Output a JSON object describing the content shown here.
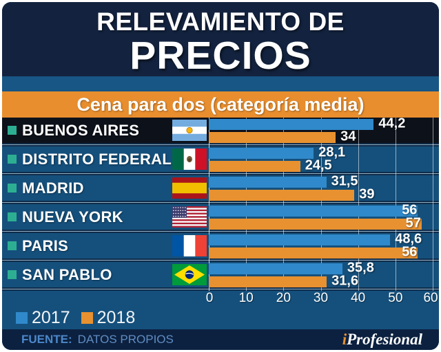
{
  "header": {
    "title_line1": "RELEVAMIENTO DE",
    "title_line2": "PRECIOS"
  },
  "subtitle": "Cena para dos (categoría media)",
  "legend": {
    "items": [
      {
        "label": "2017",
        "color": "#3089CA"
      },
      {
        "label": "2018",
        "color": "#E89130"
      }
    ]
  },
  "footer": {
    "source_label": "FUENTE:",
    "source_text": "DATOS PROPIOS",
    "brand_prefix": "i",
    "brand_name": "Profesional"
  },
  "colors": {
    "header_bg": "#13233F",
    "strip_bg": "#175685",
    "subtitle_bg": "#E88E2E",
    "chart_bg": "#15507C",
    "highlight_row_bg": "#0D1119",
    "separator_bg": "#0E2B49",
    "bar_2017": "#3089CA",
    "bar_2018": "#E89130",
    "bullet": "#2DAE92",
    "footer_bg": "#0C2140"
  },
  "chart_data": {
    "type": "bar",
    "orientation": "horizontal",
    "title": "Cena para dos (categoría media)",
    "categories": [
      "BUENOS AIRES",
      "DISTRITO FEDERAL",
      "MADRID",
      "NUEVA YORK",
      "PARIS",
      "SAN PABLO"
    ],
    "flags": [
      "argentina",
      "mexico",
      "espana",
      "eeuu",
      "francia",
      "brasil"
    ],
    "series": [
      {
        "name": "2017",
        "color": "#3089CA",
        "values": [
          44.2,
          28.1,
          31.5,
          56,
          48.6,
          35.8
        ],
        "labels": [
          "44,2",
          "28,1",
          "31,5",
          "56",
          "48,6",
          "35,8"
        ]
      },
      {
        "name": "2018",
        "color": "#E89130",
        "values": [
          34,
          24.5,
          39,
          57,
          56,
          31.6
        ],
        "labels": [
          "34",
          "24,5",
          "39",
          "57",
          "56",
          "31,6"
        ]
      }
    ],
    "xlim": [
      0,
      60
    ],
    "x_ticks": [
      "0",
      "10",
      "20",
      "30",
      "40",
      "50",
      "60"
    ],
    "grid": true,
    "legend_position": "bottom-left",
    "highlighted_category": "BUENOS AIRES"
  }
}
